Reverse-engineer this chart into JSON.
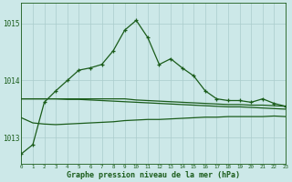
{
  "title": "Graphe pression niveau de la mer (hPa)",
  "bg_color": "#cce8e8",
  "grid_color": "#aacccc",
  "line_color": "#1a5c1a",
  "xlim": [
    0,
    23
  ],
  "ylim": [
    1012.55,
    1015.35
  ],
  "yticks": [
    1013,
    1014,
    1015
  ],
  "xticks": [
    0,
    1,
    2,
    3,
    4,
    5,
    6,
    7,
    8,
    9,
    10,
    11,
    12,
    13,
    14,
    15,
    16,
    17,
    18,
    19,
    20,
    21,
    22,
    23
  ],
  "series_main": [
    1012.72,
    1012.88,
    1013.62,
    1013.82,
    1014.0,
    1014.18,
    1014.22,
    1014.28,
    1014.52,
    1014.88,
    1015.05,
    1014.75,
    1014.28,
    1014.38,
    1014.22,
    1014.08,
    1013.82,
    1013.68,
    1013.65,
    1013.65,
    1013.62,
    1013.68,
    1013.6,
    1013.55
  ],
  "series_flat1": [
    1013.68,
    1013.68,
    1013.68,
    1013.68,
    1013.68,
    1013.68,
    1013.68,
    1013.68,
    1013.68,
    1013.68,
    1013.66,
    1013.65,
    1013.64,
    1013.63,
    1013.62,
    1013.61,
    1013.6,
    1013.59,
    1013.58,
    1013.58,
    1013.57,
    1013.57,
    1013.56,
    1013.55
  ],
  "series_flat2": [
    1013.68,
    1013.68,
    1013.68,
    1013.68,
    1013.67,
    1013.67,
    1013.66,
    1013.65,
    1013.64,
    1013.63,
    1013.62,
    1013.61,
    1013.6,
    1013.59,
    1013.58,
    1013.57,
    1013.56,
    1013.55,
    1013.54,
    1013.54,
    1013.53,
    1013.52,
    1013.51,
    1013.5
  ],
  "series_flat3": [
    1013.35,
    1013.26,
    1013.24,
    1013.23,
    1013.24,
    1013.25,
    1013.26,
    1013.27,
    1013.28,
    1013.3,
    1013.31,
    1013.32,
    1013.32,
    1013.33,
    1013.34,
    1013.35,
    1013.36,
    1013.36,
    1013.37,
    1013.37,
    1013.37,
    1013.37,
    1013.38,
    1013.37
  ]
}
